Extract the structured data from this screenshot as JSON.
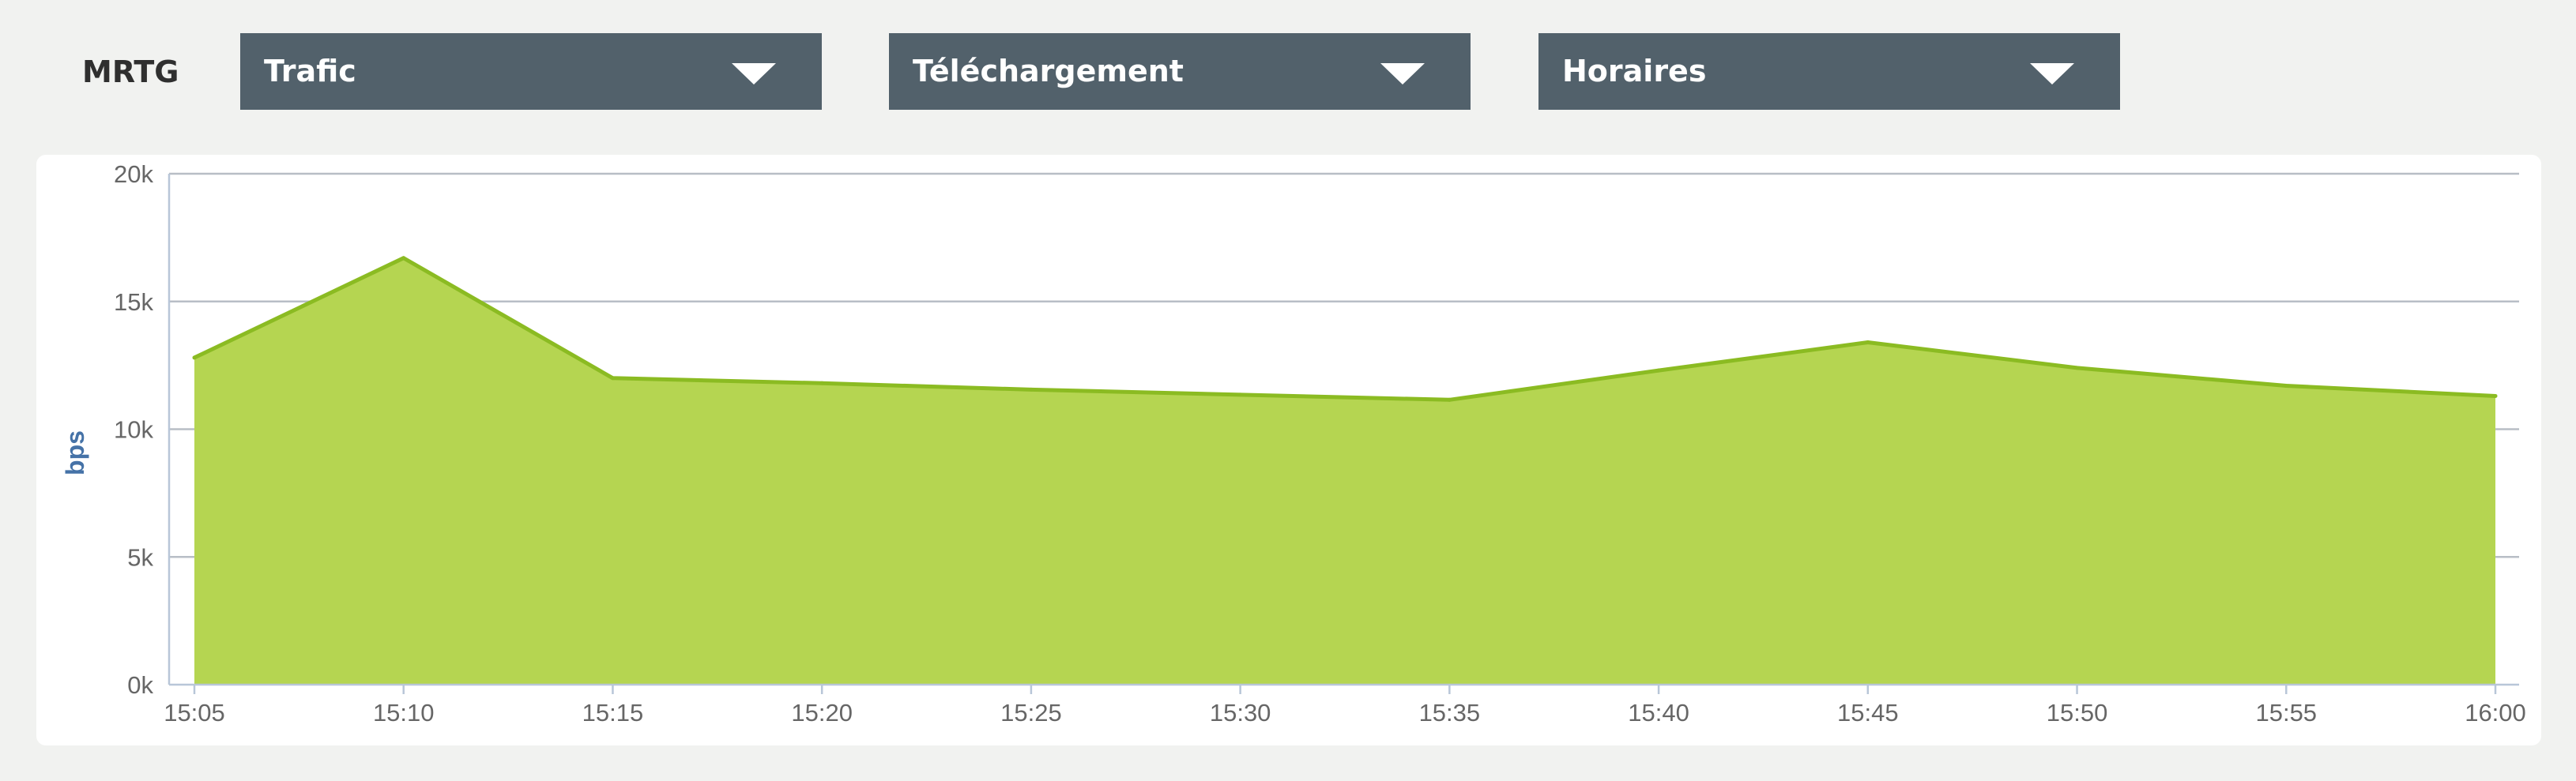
{
  "app_label": "MRTG",
  "dropdowns": [
    {
      "label": "Trafic"
    },
    {
      "label": "Téléchargement"
    },
    {
      "label": "Horaires"
    }
  ],
  "icons": {
    "dropdown_caret": "chevron-down-icon"
  },
  "colors": {
    "dropdown_bg": "#52616b",
    "area_fill": "#b5d551",
    "area_line": "#8bbb22",
    "axis_label": "#4572a7"
  },
  "chart_data": {
    "type": "area",
    "ylabel": "bps",
    "xlabel": "",
    "x": [
      "15:05",
      "15:10",
      "15:15",
      "15:20",
      "15:25",
      "15:30",
      "15:35",
      "15:40",
      "15:45",
      "15:50",
      "15:55",
      "16:00"
    ],
    "values": [
      12800,
      16700,
      12000,
      11800,
      11550,
      11350,
      11150,
      12300,
      13400,
      12400,
      11700,
      11300
    ],
    "ylim": [
      0,
      20000
    ],
    "yticks": [
      {
        "value": 0,
        "label": "0k"
      },
      {
        "value": 5000,
        "label": "5k"
      },
      {
        "value": 10000,
        "label": "10k"
      },
      {
        "value": 15000,
        "label": "15k"
      },
      {
        "value": 20000,
        "label": "20k"
      }
    ],
    "grid": true,
    "legend": "none"
  }
}
